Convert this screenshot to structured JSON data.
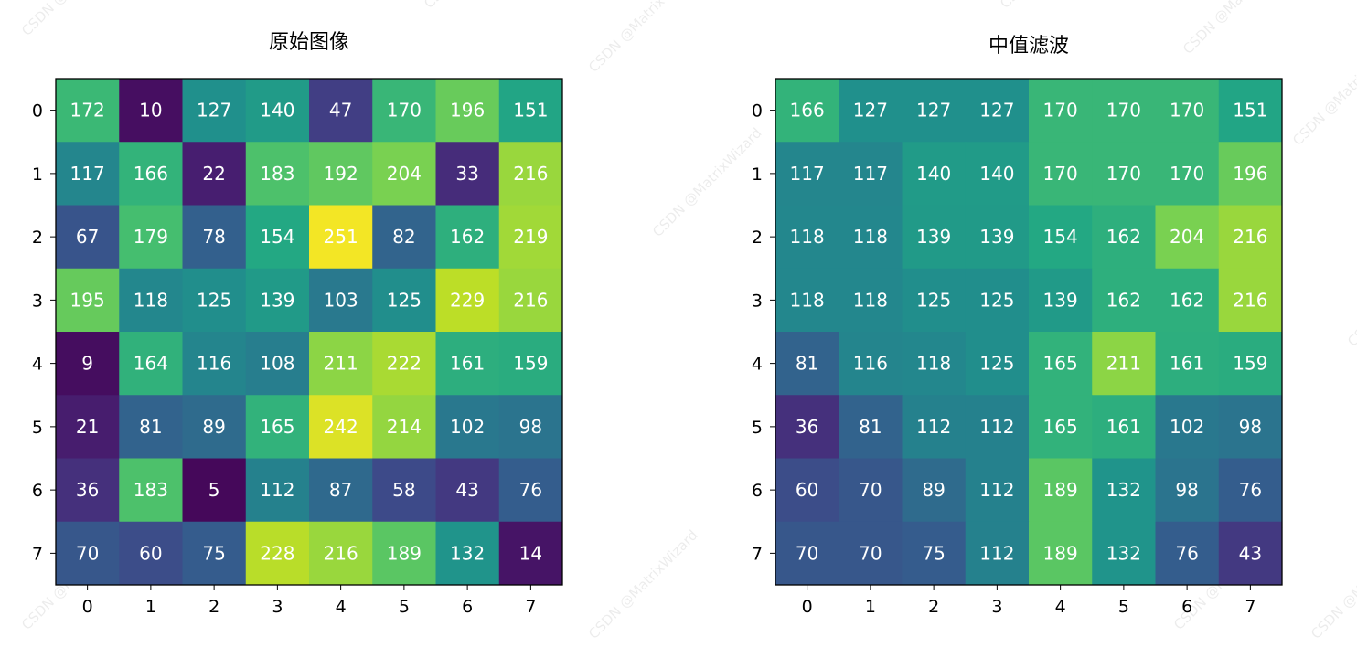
{
  "chart_data": [
    {
      "type": "heatmap",
      "title": "原始图像",
      "x_ticks": [
        "0",
        "1",
        "2",
        "3",
        "4",
        "5",
        "6",
        "7"
      ],
      "y_ticks": [
        "0",
        "1",
        "2",
        "3",
        "4",
        "5",
        "6",
        "7"
      ],
      "colormap": "viridis",
      "value_range": [
        0,
        255
      ],
      "annotated": true,
      "values": [
        [
          172,
          10,
          127,
          140,
          47,
          170,
          196,
          151
        ],
        [
          117,
          166,
          22,
          183,
          192,
          204,
          33,
          216
        ],
        [
          67,
          179,
          78,
          154,
          251,
          82,
          162,
          219
        ],
        [
          195,
          118,
          125,
          139,
          103,
          125,
          229,
          216
        ],
        [
          9,
          164,
          116,
          108,
          211,
          222,
          161,
          159
        ],
        [
          21,
          81,
          89,
          165,
          242,
          214,
          102,
          98
        ],
        [
          36,
          183,
          5,
          112,
          87,
          58,
          43,
          76
        ],
        [
          70,
          60,
          75,
          228,
          216,
          189,
          132,
          14
        ]
      ]
    },
    {
      "type": "heatmap",
      "title": "中值滤波",
      "x_ticks": [
        "0",
        "1",
        "2",
        "3",
        "4",
        "5",
        "6",
        "7"
      ],
      "y_ticks": [
        "0",
        "1",
        "2",
        "3",
        "4",
        "5",
        "6",
        "7"
      ],
      "colormap": "viridis",
      "value_range": [
        0,
        255
      ],
      "annotated": true,
      "values": [
        [
          166,
          127,
          127,
          127,
          170,
          170,
          170,
          151
        ],
        [
          117,
          117,
          140,
          140,
          170,
          170,
          170,
          196
        ],
        [
          118,
          118,
          139,
          139,
          154,
          162,
          204,
          216
        ],
        [
          118,
          118,
          125,
          125,
          139,
          162,
          162,
          216
        ],
        [
          81,
          116,
          118,
          125,
          165,
          211,
          161,
          159
        ],
        [
          36,
          81,
          112,
          112,
          165,
          161,
          102,
          98
        ],
        [
          60,
          70,
          89,
          112,
          189,
          132,
          98,
          76
        ],
        [
          70,
          70,
          75,
          112,
          189,
          132,
          76,
          43
        ]
      ]
    }
  ],
  "watermark_text": "CSDN @MatrixWizard"
}
